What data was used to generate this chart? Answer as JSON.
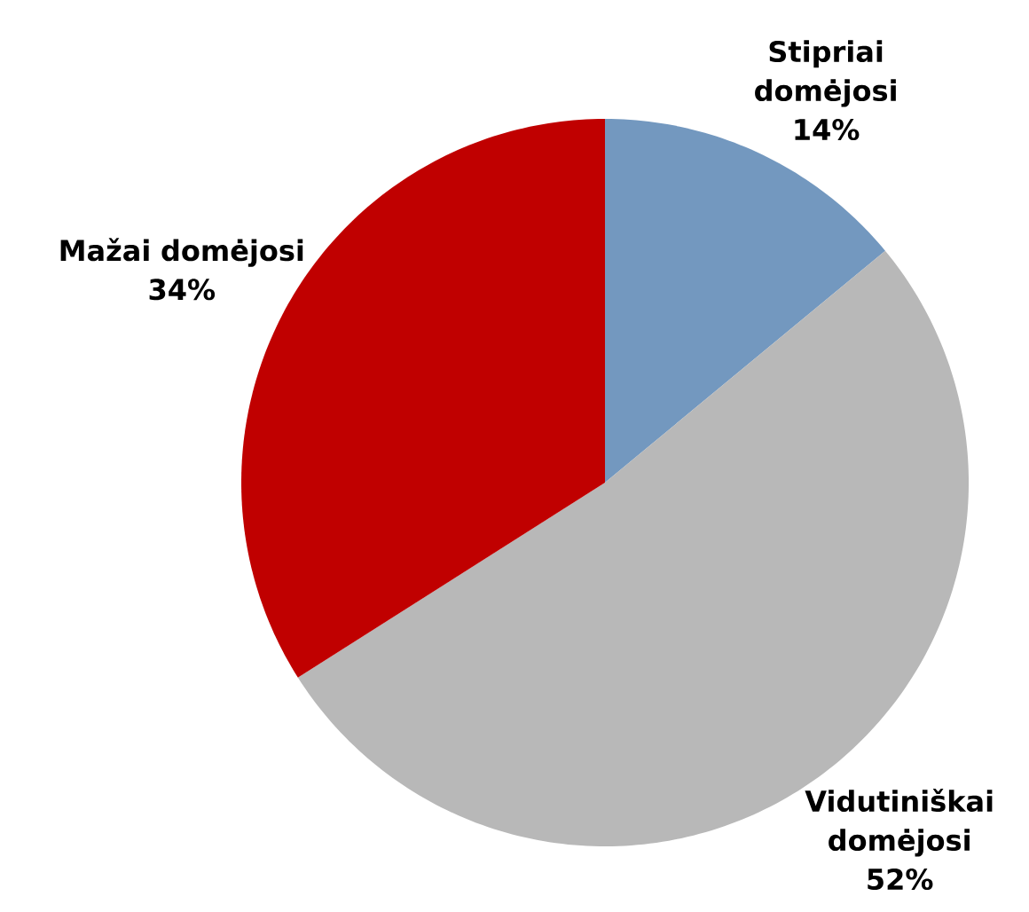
{
  "chart_data": {
    "type": "pie",
    "categories": [
      "Stipriai domėjosi",
      "Vidutiniškai domėjosi",
      "Mažai domėjosi"
    ],
    "values": [
      14,
      52,
      34
    ],
    "value_labels": [
      "14%",
      "52%",
      "34%"
    ],
    "colors": [
      "#7398bf",
      "#b8b8b8",
      "#c00000"
    ]
  }
}
